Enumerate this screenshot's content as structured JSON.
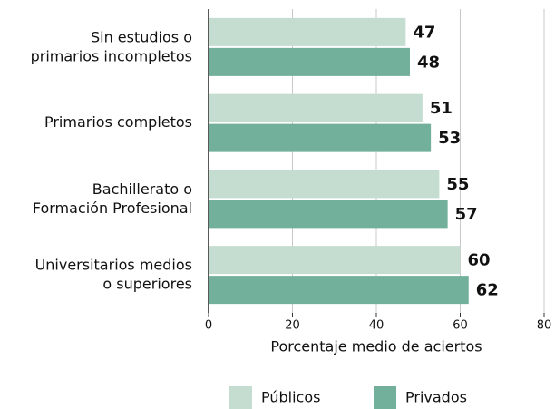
{
  "chart_data": {
    "type": "barh",
    "categories": [
      "Sin estudios o\nprimarios incompletos",
      "Primarios completos",
      "Bachillerato o\nFormación Profesional",
      "Universitarios medios\no superiores"
    ],
    "series": [
      {
        "name": "Públicos",
        "color": "#c5ddd0",
        "values": [
          47,
          51,
          55,
          60
        ]
      },
      {
        "name": "Privados",
        "color": "#72b09b",
        "values": [
          48,
          53,
          57,
          62
        ]
      }
    ],
    "xlabel": "Porcentaje medio de aciertos",
    "xlim": [
      0,
      80
    ],
    "xticks": [
      0,
      20,
      40,
      60,
      80
    ],
    "grid": true,
    "legend": "bottom"
  }
}
